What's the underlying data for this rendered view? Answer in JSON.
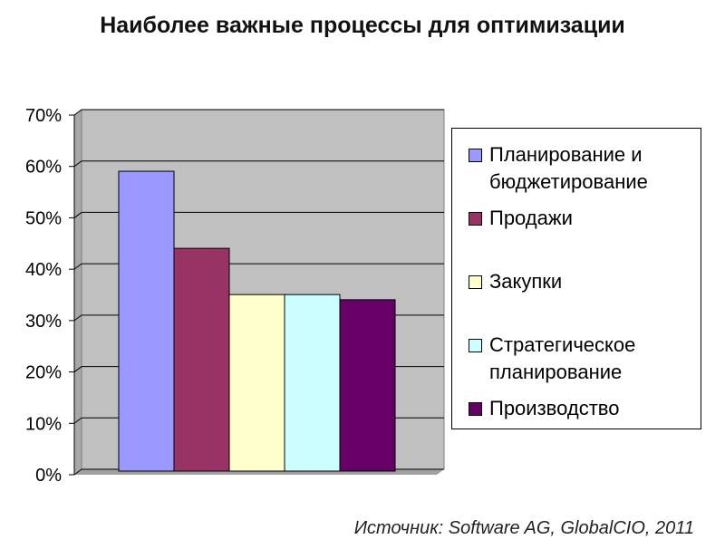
{
  "title": "Наиболее важные процессы для оптимизации",
  "source": "Источник: Software AG, GlobalCIO, 2011",
  "colors": {
    "plot_bg": "#c0c0c0",
    "frame": "#808080"
  },
  "chart_data": {
    "type": "bar",
    "title": "Наиболее важные процессы для оптимизации",
    "ylim": [
      0,
      70
    ],
    "yticks": [
      0,
      10,
      20,
      30,
      40,
      50,
      60,
      70
    ],
    "ytick_labels": [
      "0%",
      "10%",
      "20%",
      "30%",
      "40%",
      "50%",
      "60%",
      "70%"
    ],
    "grid": true,
    "legend_position": "right",
    "series": [
      {
        "name": "Планирование и бюджетирование",
        "value": 58,
        "color": "#9999ff"
      },
      {
        "name": "Продажи",
        "value": 43,
        "color": "#993366"
      },
      {
        "name": "Закупки",
        "value": 34,
        "color": "#ffffcc"
      },
      {
        "name": "Стратегическое планирование",
        "value": 34,
        "color": "#ccffff"
      },
      {
        "name": "Производство",
        "value": 33,
        "color": "#660066"
      }
    ]
  }
}
